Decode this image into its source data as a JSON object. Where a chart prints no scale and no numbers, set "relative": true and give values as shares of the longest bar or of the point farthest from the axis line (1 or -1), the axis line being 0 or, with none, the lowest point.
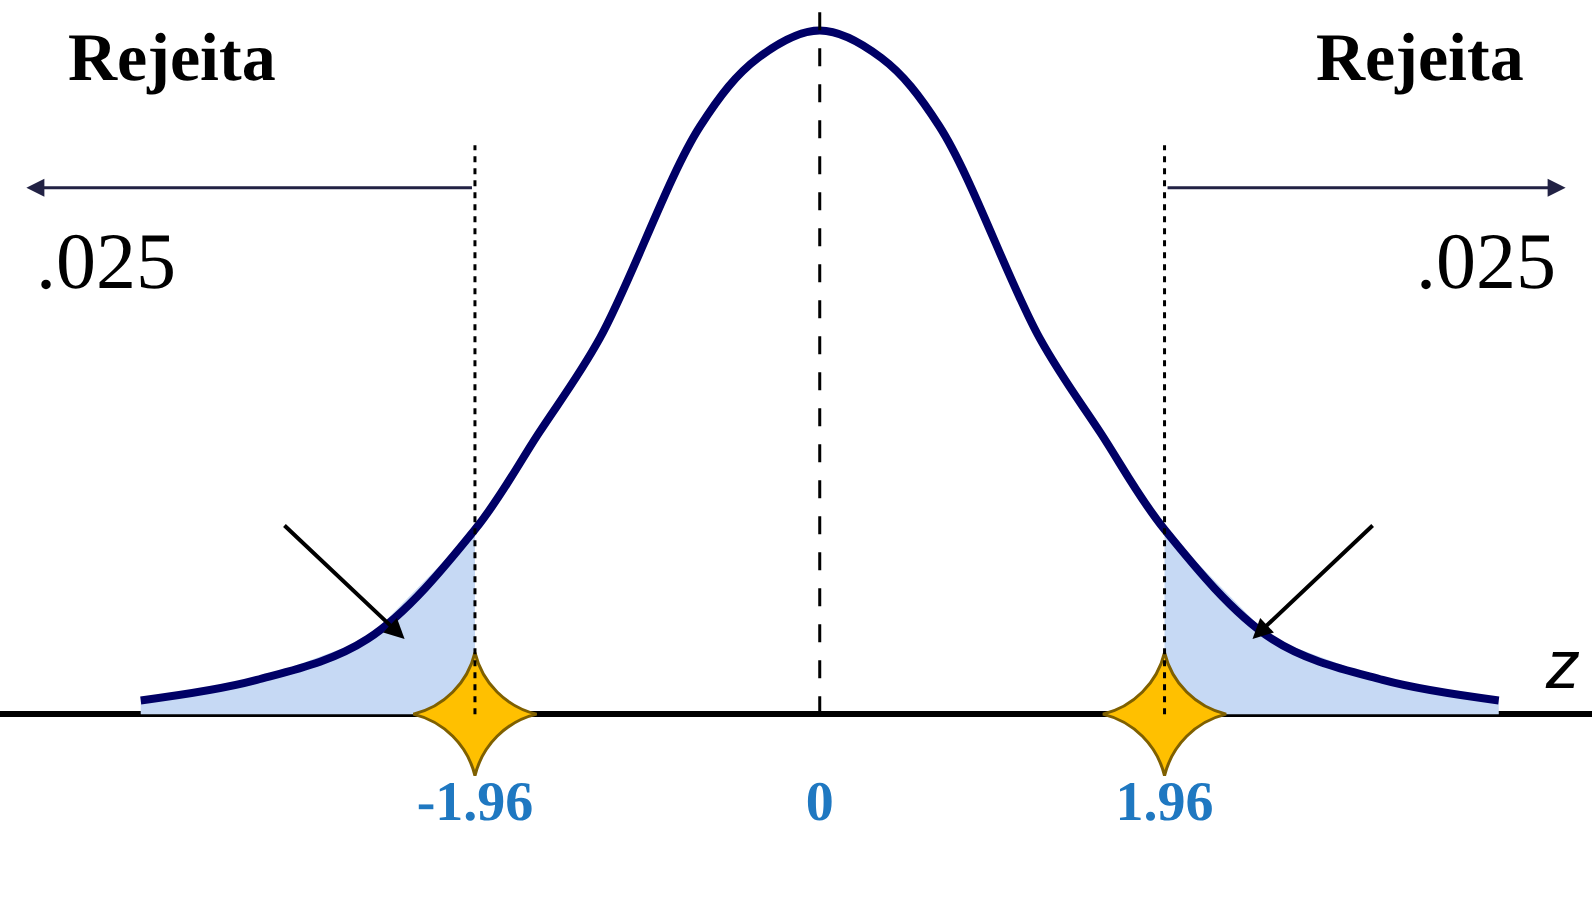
{
  "chart_data": {
    "type": "line",
    "relative": true,
    "xlabel": "z",
    "xlim": [
      -4.66,
      4.39
    ],
    "xticks": [
      -1.96,
      0,
      1.96
    ],
    "series": [
      {
        "type": "area",
        "color": "#c6d9f4",
        "x": [
          -3.86,
          -3.2,
          -2.57,
          -1.96
        ],
        "values": [
          0.02,
          0.05,
          0.11,
          0.27
        ]
      },
      {
        "type": "area",
        "color": "#c6d9f4",
        "x": [
          1.96,
          2.57,
          3.2,
          3.86
        ],
        "values": [
          0.27,
          0.11,
          0.05,
          0.02
        ]
      },
      {
        "color": "#000066",
        "x": [
          -3.86,
          -3.2,
          -2.57,
          -1.96,
          -1.6,
          -1.25,
          -0.68,
          -0.35,
          0,
          0.35,
          0.68,
          1.25,
          1.6,
          1.96,
          2.57,
          3.2,
          3.86
        ],
        "values": [
          0.02,
          0.05,
          0.11,
          0.27,
          0.41,
          0.55,
          0.86,
          0.96,
          1,
          0.96,
          0.86,
          0.55,
          0.41,
          0.27,
          0.11,
          0.05,
          0.02
        ]
      },
      {
        "type": "scatter",
        "marker": "star",
        "color": "#ffc000",
        "x": [
          -1.96,
          1.96
        ],
        "values": [
          0,
          0
        ]
      }
    ],
    "ref_lines": [
      {
        "axis": "x",
        "value": -1.96,
        "line_style": "dotted",
        "color": "#000000"
      },
      {
        "axis": "x",
        "value": 0,
        "line_style": "dashed",
        "color": "#000000"
      },
      {
        "axis": "x",
        "value": 1.96,
        "line_style": "dotted",
        "color": "#000000"
      }
    ],
    "annotations": [
      "Rejeita",
      "Rejeita",
      ".025",
      ".025"
    ]
  }
}
